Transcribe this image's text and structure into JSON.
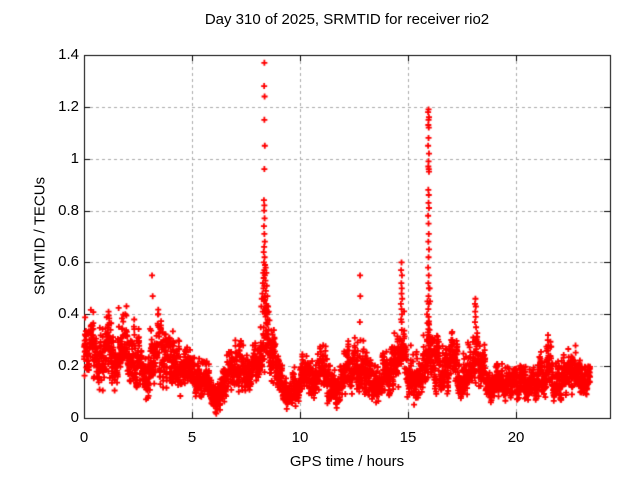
{
  "chart_data": {
    "type": "scatter",
    "title": "Day 310 of 2025, SRMTID for receiver rio2",
    "xlabel": "GPS time / hours",
    "ylabel": "SRMTID / TECUs",
    "xlim": [
      0,
      24.35
    ],
    "ylim": [
      0,
      1.4
    ],
    "xticks": [
      0,
      5,
      10,
      15,
      20
    ],
    "xtick_labels": [
      "0",
      "5",
      "10",
      "15",
      "20"
    ],
    "yticks": [
      0,
      0.2,
      0.4,
      0.6,
      0.8,
      1,
      1.2,
      1.4
    ],
    "ytick_labels": [
      "0",
      "0.2",
      "0.4",
      "0.6",
      "0.8",
      "1",
      "1.2",
      "1.4"
    ],
    "grid": {
      "show": true,
      "color": "#aaaaaa",
      "style": "dotted"
    },
    "legend": "none",
    "background": "#ffffff",
    "border_color": "#000000",
    "marker": {
      "symbol": "plus",
      "color": "#ff0000",
      "size": 7
    },
    "points_per_hour": 100,
    "baseline_band": [
      [
        0.0,
        0.5,
        0.15,
        0.43
      ],
      [
        0.5,
        0.9,
        0.08,
        0.36
      ],
      [
        0.9,
        1.3,
        0.13,
        0.42
      ],
      [
        1.3,
        1.6,
        0.1,
        0.33
      ],
      [
        1.6,
        2.0,
        0.13,
        0.44
      ],
      [
        2.0,
        2.3,
        0.1,
        0.32
      ],
      [
        2.3,
        2.7,
        0.11,
        0.38
      ],
      [
        2.7,
        3.0,
        0.07,
        0.27
      ],
      [
        3.0,
        3.4,
        0.1,
        0.36
      ],
      [
        3.4,
        3.8,
        0.1,
        0.42
      ],
      [
        3.8,
        4.2,
        0.11,
        0.36
      ],
      [
        4.2,
        4.6,
        0.08,
        0.3
      ],
      [
        4.6,
        5.0,
        0.09,
        0.3
      ],
      [
        5.0,
        5.4,
        0.08,
        0.27
      ],
      [
        5.4,
        5.8,
        0.05,
        0.22
      ],
      [
        5.8,
        6.05,
        0.03,
        0.18
      ],
      [
        6.05,
        6.3,
        0.01,
        0.14
      ],
      [
        6.3,
        6.6,
        0.03,
        0.19
      ],
      [
        6.6,
        7.0,
        0.08,
        0.26
      ],
      [
        7.0,
        7.4,
        0.1,
        0.3
      ],
      [
        7.4,
        7.8,
        0.08,
        0.26
      ],
      [
        7.8,
        8.1,
        0.12,
        0.3
      ],
      [
        8.1,
        8.3,
        0.15,
        0.38
      ],
      [
        8.3,
        8.6,
        0.16,
        0.5
      ],
      [
        8.6,
        8.9,
        0.12,
        0.38
      ],
      [
        8.9,
        9.2,
        0.07,
        0.24
      ],
      [
        9.2,
        9.6,
        0.03,
        0.16
      ],
      [
        9.6,
        10.0,
        0.04,
        0.2
      ],
      [
        10.0,
        10.4,
        0.08,
        0.26
      ],
      [
        10.4,
        10.8,
        0.07,
        0.24
      ],
      [
        10.8,
        11.2,
        0.08,
        0.3
      ],
      [
        11.2,
        11.6,
        0.04,
        0.24
      ],
      [
        11.6,
        11.9,
        0.02,
        0.2
      ],
      [
        11.9,
        12.2,
        0.06,
        0.26
      ],
      [
        12.2,
        12.6,
        0.08,
        0.32
      ],
      [
        12.6,
        13.0,
        0.08,
        0.3
      ],
      [
        13.0,
        13.4,
        0.06,
        0.26
      ],
      [
        13.4,
        13.8,
        0.05,
        0.22
      ],
      [
        13.8,
        14.2,
        0.08,
        0.26
      ],
      [
        14.2,
        14.55,
        0.1,
        0.33
      ],
      [
        14.55,
        14.85,
        0.12,
        0.42
      ],
      [
        14.85,
        15.2,
        0.08,
        0.3
      ],
      [
        15.2,
        15.6,
        0.04,
        0.26
      ],
      [
        15.6,
        15.85,
        0.1,
        0.33
      ],
      [
        15.85,
        16.1,
        0.12,
        0.4
      ],
      [
        16.1,
        16.5,
        0.08,
        0.32
      ],
      [
        16.5,
        16.9,
        0.08,
        0.28
      ],
      [
        16.9,
        17.3,
        0.1,
        0.34
      ],
      [
        17.3,
        17.7,
        0.06,
        0.25
      ],
      [
        17.7,
        18.0,
        0.09,
        0.3
      ],
      [
        18.0,
        18.3,
        0.11,
        0.4
      ],
      [
        18.3,
        18.6,
        0.08,
        0.3
      ],
      [
        18.6,
        19.0,
        0.06,
        0.2
      ],
      [
        19.0,
        19.4,
        0.07,
        0.21
      ],
      [
        19.4,
        19.8,
        0.06,
        0.2
      ],
      [
        19.8,
        20.2,
        0.07,
        0.23
      ],
      [
        20.2,
        20.6,
        0.06,
        0.2
      ],
      [
        20.6,
        21.0,
        0.07,
        0.21
      ],
      [
        21.0,
        21.4,
        0.08,
        0.26
      ],
      [
        21.4,
        21.7,
        0.09,
        0.3
      ],
      [
        21.7,
        22.1,
        0.06,
        0.22
      ],
      [
        22.1,
        22.5,
        0.08,
        0.27
      ],
      [
        22.5,
        23.0,
        0.08,
        0.28
      ],
      [
        23.0,
        23.43,
        0.08,
        0.2
      ]
    ],
    "peak_points": [
      [
        8.35,
        1.37
      ],
      [
        8.34,
        1.28
      ],
      [
        8.36,
        1.24
      ],
      [
        8.35,
        1.15
      ],
      [
        8.37,
        1.05
      ],
      [
        8.35,
        0.96
      ],
      [
        8.33,
        0.84
      ],
      [
        8.35,
        0.82
      ],
      [
        8.34,
        0.8
      ],
      [
        8.36,
        0.77
      ],
      [
        8.33,
        0.74
      ],
      [
        8.35,
        0.71
      ],
      [
        8.37,
        0.68
      ],
      [
        8.34,
        0.66
      ],
      [
        8.32,
        0.64
      ],
      [
        8.36,
        0.62
      ],
      [
        8.33,
        0.6
      ],
      [
        8.38,
        0.59
      ],
      [
        8.41,
        0.58
      ],
      [
        8.35,
        0.57
      ],
      [
        8.3,
        0.56
      ],
      [
        8.44,
        0.56
      ],
      [
        8.37,
        0.55
      ],
      [
        8.32,
        0.54
      ],
      [
        8.4,
        0.53
      ],
      [
        8.28,
        0.52
      ],
      [
        8.35,
        0.51
      ],
      [
        8.46,
        0.51
      ],
      [
        8.31,
        0.5
      ],
      [
        8.42,
        0.49
      ],
      [
        8.26,
        0.48
      ],
      [
        8.37,
        0.47
      ],
      [
        8.49,
        0.47
      ],
      [
        8.23,
        0.46
      ],
      [
        8.33,
        0.45
      ],
      [
        8.44,
        0.44
      ],
      [
        8.52,
        0.43
      ],
      [
        8.21,
        0.43
      ],
      [
        8.39,
        0.42
      ],
      [
        8.55,
        0.41
      ],
      [
        8.28,
        0.41
      ],
      [
        8.47,
        0.4
      ],
      [
        15.95,
        1.19
      ],
      [
        15.93,
        1.18
      ],
      [
        15.97,
        1.16
      ],
      [
        15.95,
        1.15
      ],
      [
        15.94,
        1.13
      ],
      [
        15.96,
        1.12
      ],
      [
        15.95,
        1.08
      ],
      [
        15.93,
        1.05
      ],
      [
        15.97,
        1.02
      ],
      [
        15.95,
        0.99
      ],
      [
        15.94,
        0.97
      ],
      [
        15.96,
        0.96
      ],
      [
        15.97,
        0.95
      ],
      [
        15.94,
        0.88
      ],
      [
        15.96,
        0.86
      ],
      [
        15.95,
        0.83
      ],
      [
        15.97,
        0.81
      ],
      [
        15.93,
        0.78
      ],
      [
        15.95,
        0.75
      ],
      [
        15.96,
        0.71
      ],
      [
        15.94,
        0.68
      ],
      [
        15.97,
        0.65
      ],
      [
        15.95,
        0.62
      ],
      [
        15.93,
        0.58
      ],
      [
        15.96,
        0.55
      ],
      [
        15.94,
        0.52
      ],
      [
        15.97,
        0.5
      ],
      [
        15.95,
        0.47
      ],
      [
        15.96,
        0.44
      ],
      [
        15.94,
        0.42
      ],
      [
        15.95,
        0.39
      ],
      [
        15.97,
        0.36
      ],
      [
        15.93,
        0.33
      ],
      [
        15.96,
        0.3
      ],
      [
        15.94,
        0.28
      ],
      [
        16.0,
        0.5
      ],
      [
        16.02,
        0.45
      ],
      [
        15.9,
        0.45
      ],
      [
        15.88,
        0.4
      ],
      [
        3.15,
        0.55
      ],
      [
        3.18,
        0.47
      ],
      [
        12.78,
        0.55
      ],
      [
        12.79,
        0.47
      ],
      [
        12.77,
        0.37
      ],
      [
        12.8,
        0.3
      ],
      [
        14.7,
        0.6
      ],
      [
        14.68,
        0.57
      ],
      [
        14.72,
        0.55
      ],
      [
        14.69,
        0.52
      ],
      [
        14.71,
        0.5
      ],
      [
        14.7,
        0.48
      ],
      [
        14.73,
        0.46
      ],
      [
        14.67,
        0.44
      ],
      [
        14.7,
        0.42
      ],
      [
        14.72,
        0.4
      ],
      [
        14.68,
        0.38
      ],
      [
        18.12,
        0.46
      ],
      [
        18.1,
        0.44
      ],
      [
        18.14,
        0.43
      ],
      [
        18.11,
        0.41
      ],
      [
        18.13,
        0.39
      ],
      [
        18.1,
        0.37
      ],
      [
        18.15,
        0.35
      ],
      [
        21.48,
        0.32
      ],
      [
        21.47,
        0.3
      ],
      [
        21.49,
        0.28
      ],
      [
        21.48,
        0.26
      ],
      [
        21.5,
        0.24
      ]
    ]
  }
}
